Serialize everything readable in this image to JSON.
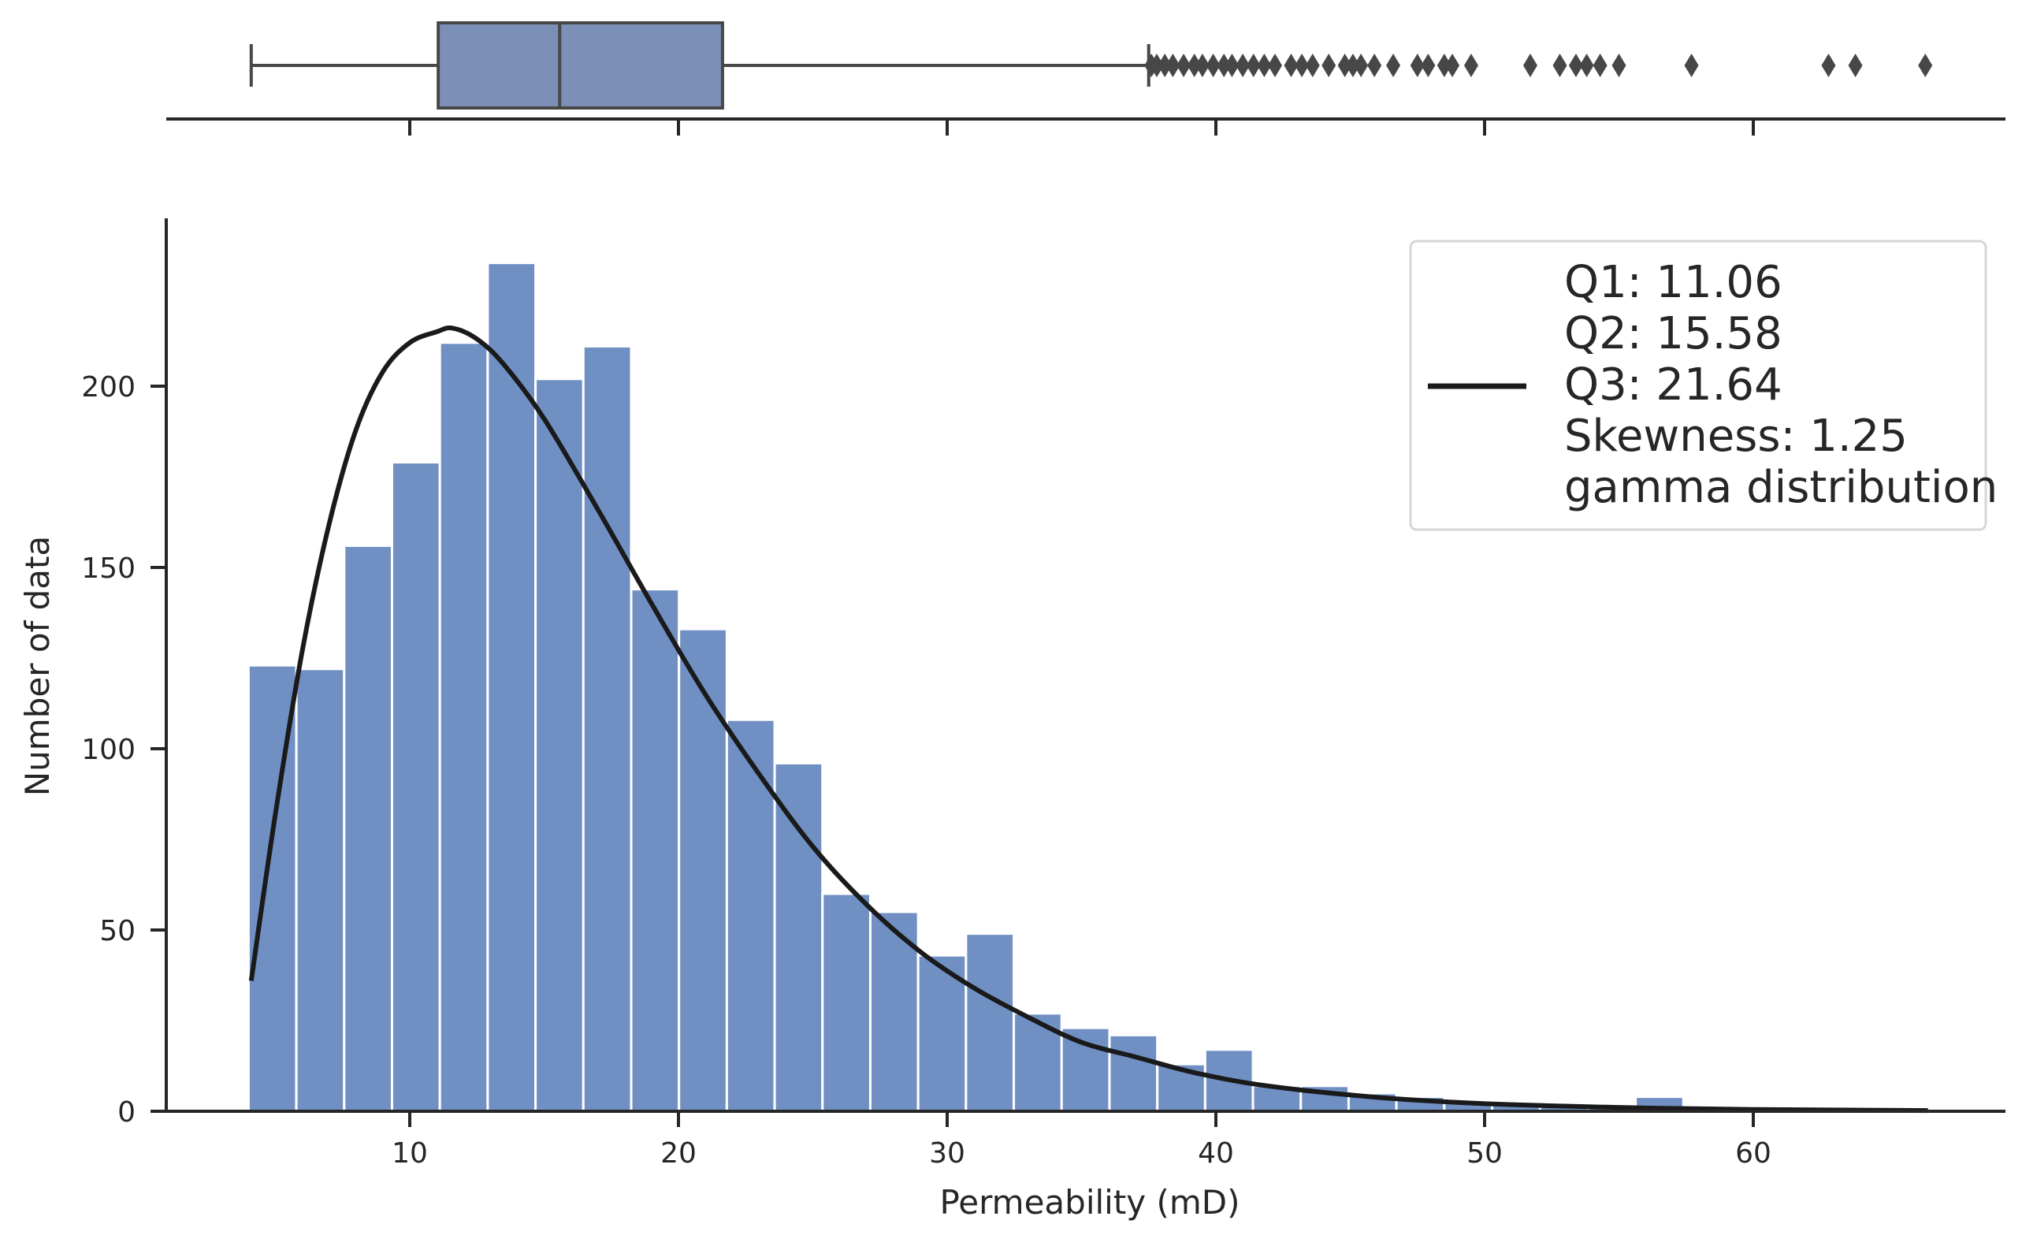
{
  "chart_data": [
    {
      "type": "box",
      "orientation": "horizontal",
      "whisker_low": 4.1,
      "q1": 11.06,
      "median": 15.58,
      "q3": 21.64,
      "whisker_high": 37.5,
      "outliers": [
        37.6,
        37.8,
        38.1,
        38.4,
        38.8,
        39.2,
        39.5,
        39.9,
        40.3,
        40.6,
        41.0,
        41.4,
        41.8,
        42.2,
        42.8,
        43.2,
        43.6,
        44.2,
        44.8,
        45.1,
        45.4,
        45.9,
        46.6,
        47.5,
        47.9,
        48.5,
        48.8,
        49.5,
        51.7,
        52.8,
        53.4,
        53.8,
        54.3,
        55.0,
        57.7,
        62.8,
        63.8,
        66.4
      ],
      "xticks": [
        10,
        20,
        30,
        40,
        50,
        60
      ]
    },
    {
      "type": "bar",
      "subtype": "histogram",
      "xlabel": "Permeability (mD)",
      "ylabel": "Number of data",
      "xlim": [
        1,
        67.5
      ],
      "ylim": [
        0,
        245
      ],
      "xticks": [
        10,
        20,
        30,
        40,
        50,
        60
      ],
      "yticks": [
        0,
        50,
        100,
        150,
        200
      ],
      "bin_start": 4.0,
      "bin_width": 1.78,
      "values": [
        123,
        122,
        156,
        179,
        212,
        234,
        202,
        211,
        144,
        133,
        108,
        96,
        60,
        55,
        43,
        49,
        27,
        23,
        21,
        13,
        17,
        7,
        7,
        5,
        4,
        3,
        2,
        2,
        1,
        4,
        1,
        1,
        0,
        0,
        0
      ],
      "fit": {
        "name": "gamma distribution",
        "x": [
          4.1,
          5,
          6,
          7,
          8,
          9,
          10,
          11,
          11.6,
          12.5,
          13.5,
          15,
          17,
          19,
          21,
          23,
          25,
          27,
          29,
          31,
          33,
          35,
          37,
          39,
          41,
          43,
          45,
          47,
          50,
          53,
          56,
          60,
          66.5
        ],
        "y": [
          36,
          82,
          127,
          162,
          188,
          204,
          212,
          215,
          216,
          213,
          206,
          191,
          166,
          140,
          115,
          93,
          73,
          57,
          44,
          34,
          26,
          19,
          15,
          11,
          8,
          6,
          4.5,
          3.3,
          2.1,
          1.4,
          0.9,
          0.5,
          0.2
        ]
      },
      "legend": {
        "position": "top-right",
        "lines": [
          "Q1: 11.06",
          "Q2: 15.58",
          "Q3: 21.64",
          "Skewness: 1.25",
          "gamma distribution"
        ]
      }
    }
  ],
  "colors": {
    "bar_fill": "#7090c4",
    "box_fill": "#7c8fb7",
    "box_edge": "#474747",
    "fit_line": "#1a1a1a",
    "axis": "#262626"
  }
}
